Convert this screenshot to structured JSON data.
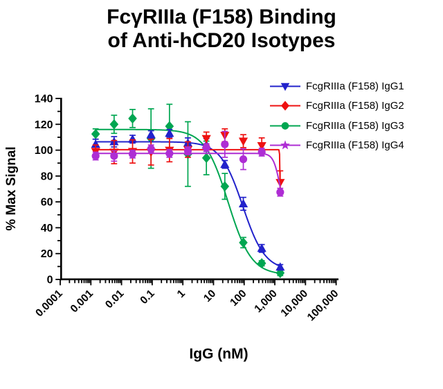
{
  "figure": {
    "title_line1": "FcγRIIIa (F158) Binding",
    "title_line2": "of Anti-hCD20 Isotypes",
    "x_axis_title": "IgG (nM)",
    "y_axis_title": "% Max Signal"
  },
  "chart_data": {
    "type": "scatter",
    "subtype": "dose-response-binding-curves",
    "title": "FcγRIIIa (F158) Binding of Anti-hCD20 Isotypes",
    "xlabel": "IgG (nM)",
    "ylabel": "% Max Signal",
    "x_scale": "log10",
    "xlim": [
      0.0001,
      100000
    ],
    "ylim": [
      0,
      140
    ],
    "grid": false,
    "legend_position": "top-right",
    "x_tick_labels": [
      "0.0001",
      "0.001",
      "0.01",
      "0.1",
      "1",
      "10",
      "100",
      "1,000",
      "10,000",
      "100,000"
    ],
    "y_ticks": [
      0,
      20,
      40,
      60,
      80,
      100,
      120,
      140
    ],
    "y_minor_tick_step": 10,
    "x_nM": [
      0.00143,
      0.00572,
      0.0229,
      0.0916,
      0.366,
      1.46,
      5.86,
      23.4,
      93.8,
      375,
      1500
    ],
    "series": [
      {
        "name": "FcgRIIIa (F158) IgG1",
        "color": "#2222CB",
        "marker": "triangle-up",
        "legend_marker": "triangle-down",
        "values": [
          104.5,
          106.5,
          108.5,
          112,
          113,
          105.5,
          104,
          89,
          58.5,
          24,
          9.5
        ],
        "sd": [
          4,
          4,
          3,
          3,
          3,
          4,
          5,
          3,
          5,
          3,
          2
        ],
        "fit": {
          "top": 106.5,
          "bottom": 7,
          "ic50": 90,
          "hill": 1.2
        }
      },
      {
        "name": "FcgRIIIa (F158) IgG2",
        "color": "#EE1111",
        "marker": "triangle-down",
        "legend_marker": "diamond",
        "values": [
          99,
          98.5,
          99,
          98.5,
          100,
          100.5,
          109,
          111.5,
          107,
          103.5,
          75
        ],
        "sd": [
          5,
          9,
          9,
          10,
          9,
          6,
          5,
          5,
          5,
          6,
          9
        ],
        "fit": {
          "top": 100.4,
          "bottom": 30,
          "ic50": 1500,
          "hill": 60
        }
      },
      {
        "name": "FcgRIIIa (F158) IgG3",
        "color": "#00A651",
        "marker": "diamond",
        "legend_marker": "circle",
        "values": [
          112.5,
          120,
          124.5,
          109,
          118.5,
          97,
          94,
          72,
          28.5,
          12.5,
          5
        ],
        "sd": [
          4,
          7,
          7,
          23,
          17,
          25,
          13,
          10,
          4,
          2,
          2
        ],
        "fit": {
          "top": 116,
          "bottom": 3.5,
          "ic50": 30,
          "hill": 1.15
        }
      },
      {
        "name": "FcgRIIIa (F158) IgG4",
        "color": "#AE2DD4",
        "marker": "circle",
        "legend_marker": "star",
        "values": [
          95.5,
          95.5,
          97,
          101,
          97.5,
          99.5,
          102,
          104.5,
          93,
          98.5,
          67.5
        ],
        "sd": [
          3,
          4,
          3,
          3,
          3,
          3,
          3,
          10,
          8,
          3,
          3
        ],
        "fit": {
          "top": 97.5,
          "bottom": 45,
          "ic50": 1500,
          "hill": 4
        }
      }
    ]
  }
}
